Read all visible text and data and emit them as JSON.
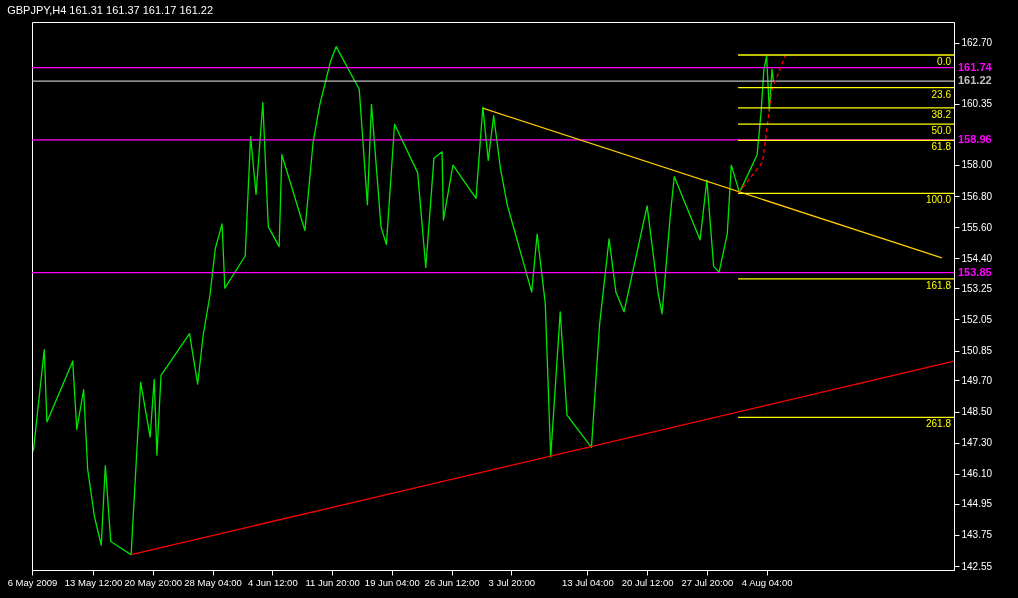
{
  "chart_data": {
    "type": "line",
    "title": "GBPJPY,H4  161.31 161.37 161.17 161.22",
    "xlim": [
      "2009-05-06T00:00",
      "2009-08-27T04:00"
    ],
    "xticks": [
      {
        "value": "2009-05-06",
        "label": "6 May 2009"
      },
      {
        "value": "2009-05-13T12:00",
        "label": "13 May 12:00"
      },
      {
        "value": "2009-05-20T20:00",
        "label": "20 May 20:00"
      },
      {
        "value": "2009-05-28T04:00",
        "label": "28 May 04:00"
      },
      {
        "value": "2009-06-04T12:00",
        "label": "4 Jun 12:00"
      },
      {
        "value": "2009-06-11T20:00",
        "label": "11 Jun 20:00"
      },
      {
        "value": "2009-06-19T04:00",
        "label": "19 Jun 04:00"
      },
      {
        "value": "2009-06-26T12:00",
        "label": "26 Jun 12:00"
      },
      {
        "value": "2009-07-03T20:00",
        "label": "3 Jul 20:00"
      },
      {
        "value": "2009-07-13T04:00",
        "label": "13 Jul 04:00"
      },
      {
        "value": "2009-07-20T12:00",
        "label": "20 Jul 12:00"
      },
      {
        "value": "2009-07-27T20:00",
        "label": "27 Jul 20:00"
      },
      {
        "value": "2009-08-04T04:00",
        "label": "4 Aug 04:00"
      }
    ],
    "ylim": [
      142.4,
      163.5
    ],
    "yticks": [
      {
        "value": 162.7,
        "label": "162.70"
      },
      {
        "value": 160.35,
        "label": "160.35"
      },
      {
        "value": 158,
        "label": "158.00"
      },
      {
        "value": 156.8,
        "label": "156.80"
      },
      {
        "value": 155.6,
        "label": "155.60"
      },
      {
        "value": 154.4,
        "label": "154.40"
      },
      {
        "value": 153.25,
        "label": "153.25"
      },
      {
        "value": 152.05,
        "label": "152.05"
      },
      {
        "value": 150.85,
        "label": "150.85"
      },
      {
        "value": 149.7,
        "label": "149.70"
      },
      {
        "value": 148.5,
        "label": "148.50"
      },
      {
        "value": 147.3,
        "label": "147.30"
      },
      {
        "value": 146.1,
        "label": "146.10"
      },
      {
        "value": 144.95,
        "label": "144.95"
      },
      {
        "value": 143.75,
        "label": "143.75"
      },
      {
        "value": 142.55,
        "label": "142.55"
      }
    ],
    "grid": false,
    "series": [
      {
        "color": "#00e600",
        "x": [
          "2009-05-06T04:00",
          "2009-05-07T12:00",
          "2009-05-07T20:00",
          "2009-05-11T00:00",
          "2009-05-11T12:00",
          "2009-05-12T08:00",
          "2009-05-12T20:00",
          "2009-05-13T16:00",
          "2009-05-14T12:00",
          "2009-05-15T00:00",
          "2009-05-15T16:00",
          "2009-05-18T04:00",
          "2009-05-19T08:00",
          "2009-05-20T12:00",
          "2009-05-21T00:00",
          "2009-05-21T08:00",
          "2009-05-21T20:00",
          "2009-05-25T08:00",
          "2009-05-26T08:00",
          "2009-05-27T00:00",
          "2009-05-27T20:00",
          "2009-05-28T12:00",
          "2009-05-29T08:00",
          "2009-05-29T16:00",
          "2009-06-01T04:00",
          "2009-06-01T20:00",
          "2009-06-02T12:00",
          "2009-06-03T08:00",
          "2009-06-04T00:00",
          "2009-06-05T08:00",
          "2009-06-05T16:00",
          "2009-06-08T12:00",
          "2009-06-09T12:00",
          "2009-06-10T08:00",
          "2009-06-11T16:00",
          "2009-06-12T08:00",
          "2009-06-15T04:00",
          "2009-06-16T04:00",
          "2009-06-16T16:00",
          "2009-06-17T20:00",
          "2009-06-18T12:00",
          "2009-06-19T12:00",
          "2009-06-22T08:00",
          "2009-06-23T08:00",
          "2009-06-24T08:00",
          "2009-06-25T08:00",
          "2009-06-25T12:00",
          "2009-06-26T16:00",
          "2009-06-29T12:00",
          "2009-06-30T08:00",
          "2009-07-01T00:00",
          "2009-07-01T16:00",
          "2009-07-02T12:00",
          "2009-07-03T08:00",
          "2009-07-06T08:00",
          "2009-07-07T00:00",
          "2009-07-08T00:00",
          "2009-07-08T16:00",
          "2009-07-09T20:00",
          "2009-07-10T16:00",
          "2009-07-13T16:00",
          "2009-07-14T16:00",
          "2009-07-15T20:00",
          "2009-07-16T16:00",
          "2009-07-17T16:00",
          "2009-07-20T12:00",
          "2009-07-21T20:00",
          "2009-07-22T08:00",
          "2009-07-23T08:00",
          "2009-07-23T20:00",
          "2009-07-27T00:00",
          "2009-07-27T20:00",
          "2009-07-28T16:00",
          "2009-07-29T08:00",
          "2009-07-30T08:00",
          "2009-07-30T20:00",
          "2009-07-31T20:00",
          "2009-08-03T00:00",
          "2009-08-03T12:00",
          "2009-08-03T20:00",
          "2009-08-04T04:00",
          "2009-08-04T12:00",
          "2009-08-04T20:00",
          "2009-08-05T00:00"
        ],
        "values": [
          146.97,
          150.88,
          148.1,
          150.44,
          147.81,
          149.34,
          146.28,
          144.45,
          143.36,
          146.42,
          143.5,
          142.99,
          149.63,
          147.52,
          149.74,
          146.82,
          149.89,
          151.5,
          149.56,
          151.42,
          152.96,
          154.78,
          155.73,
          153.25,
          154.49,
          159.09,
          156.86,
          160.4,
          155.62,
          154.85,
          158.39,
          155.47,
          158.87,
          160.33,
          162.01,
          162.55,
          160.91,
          156.46,
          160.33,
          155.62,
          154.93,
          159.56,
          157.7,
          154.05,
          158.25,
          158.5,
          155.88,
          157.99,
          156.71,
          160.22,
          158.17,
          159.89,
          157.85,
          156.46,
          153.1,
          155.33,
          152.66,
          146.75,
          152.34,
          148.36,
          147.12,
          151.86,
          155.15,
          153.1,
          152.34,
          156.42,
          153.1,
          152.26,
          156.02,
          157.55,
          155.11,
          157.41,
          154.09,
          153.87,
          155.33,
          157.99,
          156.93,
          158.39,
          160.07,
          161.68,
          162.19,
          160.07,
          161.68,
          161.22
        ]
      },
      {
        "color": "#ffcc00",
        "x": [
          "2009-06-30T08:00",
          "2009-08-25T16:00"
        ],
        "values": [
          160.18,
          154.42
        ]
      },
      {
        "color": "#ff0000",
        "x": [
          "2009-05-18T04:00",
          "2009-08-27T04:00"
        ],
        "values": [
          142.99,
          150.44
        ]
      },
      {
        "color": "#ff0000",
        "line_style": "dashed",
        "x": [
          "2009-07-31T16:00",
          "2009-08-03T16:00",
          "2009-08-04T20:00",
          "2009-08-06T12:00"
        ],
        "values": [
          156.9,
          158.1,
          160.91,
          162.23
        ]
      },
      {
        "name": "0.0",
        "color": "#ffff00",
        "x": [
          "2009-07-31T16:00",
          "2009-08-27T04:00"
        ],
        "values": [
          162.23,
          162.23
        ]
      },
      {
        "name": "23.6",
        "color": "#ffff00",
        "x": [
          "2009-07-31T16:00",
          "2009-08-27T04:00"
        ],
        "values": [
          160.97,
          160.97
        ]
      },
      {
        "name": "38.2",
        "color": "#ffff00",
        "x": [
          "2009-07-31T16:00",
          "2009-08-27T04:00"
        ],
        "values": [
          160.19,
          160.19
        ]
      },
      {
        "name": "50.0",
        "color": "#ffff00",
        "x": [
          "2009-07-31T16:00",
          "2009-08-27T04:00"
        ],
        "values": [
          159.57,
          159.57
        ]
      },
      {
        "name": "61.8",
        "color": "#ffff00",
        "x": [
          "2009-07-31T16:00",
          "2009-08-27T04:00"
        ],
        "values": [
          158.94,
          158.94
        ]
      },
      {
        "name": "100.0",
        "color": "#ffff00",
        "x": [
          "2009-07-31T16:00",
          "2009-08-27T04:00"
        ],
        "values": [
          156.9,
          156.9
        ]
      },
      {
        "name": "161.8",
        "color": "#ffff00",
        "x": [
          "2009-07-31T16:00",
          "2009-08-27T04:00"
        ],
        "values": [
          153.61,
          153.61
        ]
      },
      {
        "name": "261.8",
        "color": "#ffff00",
        "x": [
          "2009-07-31T16:00",
          "2009-08-27T04:00"
        ],
        "values": [
          148.28,
          148.28
        ]
      }
    ],
    "ref_lines": [
      {
        "axis": "y",
        "value": 161.74,
        "label": "161.74",
        "color": "#ff00ff"
      },
      {
        "axis": "y",
        "value": 161.22,
        "label": "161.22",
        "color": "#c0c0c0"
      },
      {
        "axis": "y",
        "value": 158.96,
        "label": "158.96",
        "color": "#ff00ff"
      },
      {
        "axis": "y",
        "value": 153.85,
        "label": "153.85",
        "color": "#ff00ff"
      }
    ]
  }
}
